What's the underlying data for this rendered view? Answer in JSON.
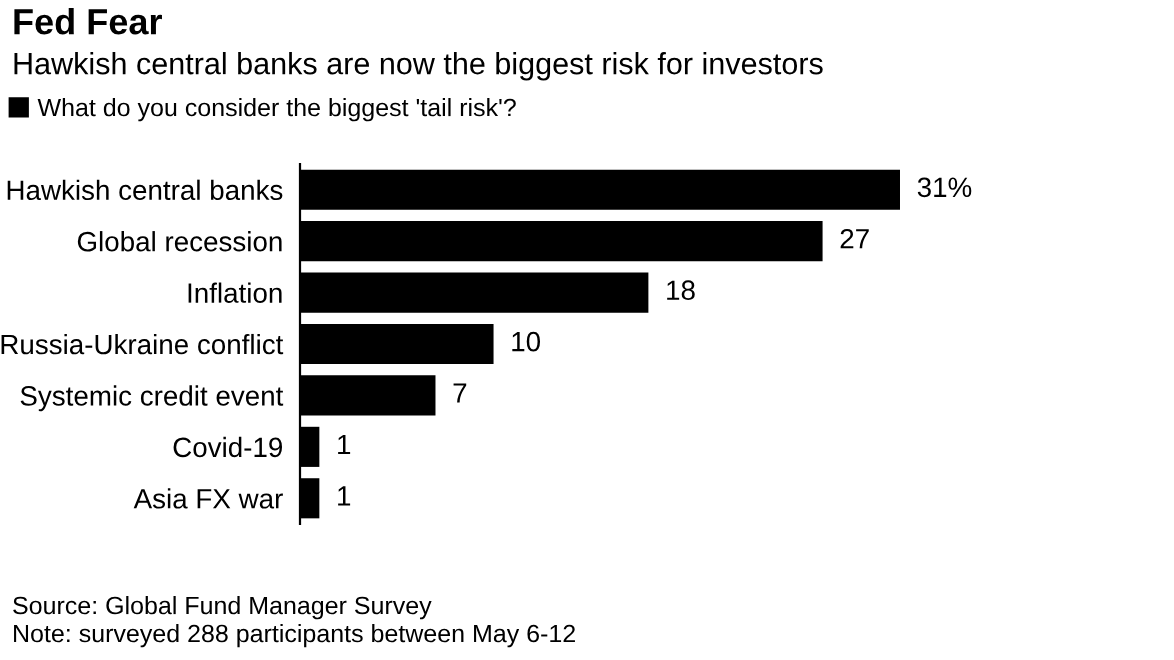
{
  "chart_data": {
    "type": "bar",
    "orientation": "horizontal",
    "title": "Fed Fear",
    "subtitle": "Hawkish central banks are now the biggest risk for investors",
    "categories": [
      "Hawkish central banks",
      "Global recession",
      "Inflation",
      "Russia-Ukraine conflict",
      "Systemic credit event",
      "Covid-19",
      "Asia FX war"
    ],
    "series": [
      {
        "name": "What do you consider the biggest 'tail risk'?",
        "color": "#000000",
        "values": [
          31,
          27,
          18,
          10,
          7,
          1,
          1
        ],
        "value_labels": [
          "31%",
          "27",
          "18",
          "10",
          "7",
          "1",
          "1"
        ]
      }
    ],
    "legend": "top left",
    "tick_labels": "y",
    "annotations": [
      "Source: Global Fund Manager Survey",
      "Note: surveyed 288 participants between May 6-12"
    ]
  }
}
